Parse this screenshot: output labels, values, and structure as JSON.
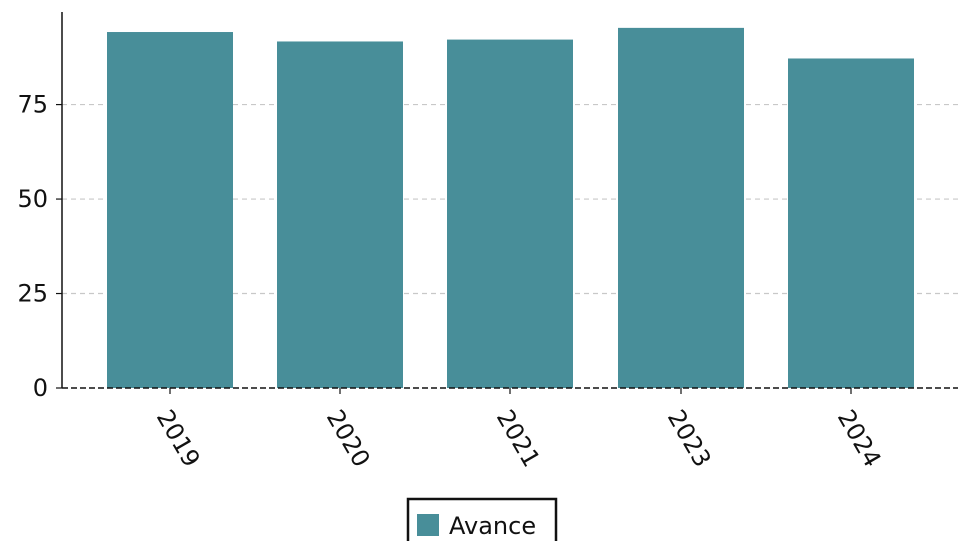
{
  "chart_data": {
    "type": "bar",
    "categories": [
      "2019",
      "2020",
      "2021",
      "2023",
      "2024"
    ],
    "series": [
      {
        "name": "Avance",
        "color": "#488e99",
        "values": [
          94.2,
          91.7,
          92.2,
          95.3,
          87.2
        ]
      }
    ],
    "yticks": [
      0,
      25,
      50,
      75
    ],
    "ylim": [
      0,
      99.5
    ],
    "grid": {
      "y": true,
      "style": "dashed",
      "color": "#c8c8c8"
    },
    "legend_position": "bottom-center",
    "title": "",
    "xlabel": "",
    "ylabel": ""
  }
}
